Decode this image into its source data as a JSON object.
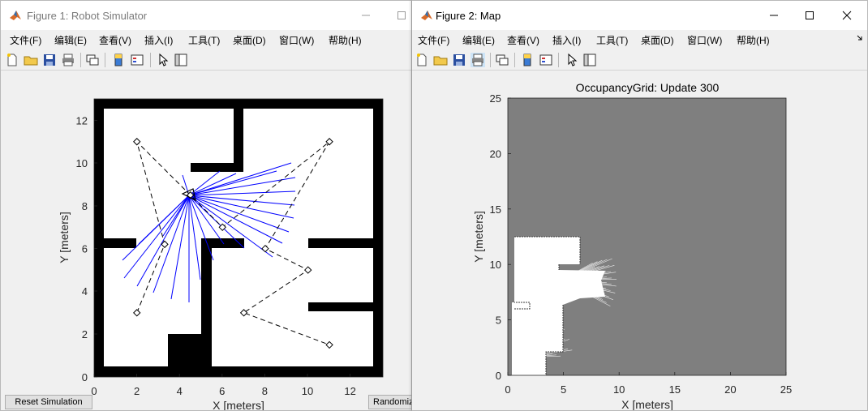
{
  "figure1": {
    "title": "Figure 1: Robot Simulator",
    "menus": [
      "文件(F)",
      "编辑(E)",
      "查看(V)",
      "插入(I)",
      "工具(T)",
      "桌面(D)",
      "窗口(W)",
      "帮助(H)"
    ],
    "xlabel": "X [meters]",
    "ylabel": "Y [meters]",
    "xticks": [
      "0",
      "2",
      "4",
      "6",
      "8",
      "10",
      "12"
    ],
    "yticks": [
      "0",
      "2",
      "4",
      "6",
      "8",
      "10",
      "12"
    ],
    "reset_button": "Reset Simulation",
    "randomize_button": "Randomiz"
  },
  "figure2": {
    "title": "Figure 2: Map",
    "menus": [
      "文件(F)",
      "编辑(E)",
      "查看(V)",
      "插入(I)",
      "工具(T)",
      "桌面(D)",
      "窗口(W)",
      "帮助(H)"
    ],
    "plot_title": "OccupancyGrid: Update 300",
    "xlabel": "X [meters]",
    "ylabel": "Y [meters]",
    "xticks": [
      "0",
      "5",
      "10",
      "15",
      "20",
      "25"
    ],
    "yticks": [
      "0",
      "5",
      "10",
      "15",
      "20",
      "25"
    ]
  },
  "colors": {
    "wall": "#000000",
    "laser": "#0000ff",
    "unknown": "#7f7f7f",
    "free": "#ffffff"
  },
  "chart_data": [
    {
      "type": "scatter",
      "xlim": [
        0,
        13.5
      ],
      "ylim": [
        0,
        13
      ],
      "robot_pose": {
        "x": 4.5,
        "y": 8.5
      },
      "waypoints": [
        {
          "x": 2,
          "y": 3
        },
        {
          "x": 3.3,
          "y": 6.2
        },
        {
          "x": 2,
          "y": 11
        },
        {
          "x": 4.5,
          "y": 8.5
        },
        {
          "x": 6,
          "y": 7
        },
        {
          "x": 11,
          "y": 11
        },
        {
          "x": 8,
          "y": 6
        },
        {
          "x": 10,
          "y": 5
        },
        {
          "x": 7,
          "y": 3
        },
        {
          "x": 11,
          "y": 1.5
        }
      ]
    },
    {
      "type": "heatmap",
      "title": "OccupancyGrid: Update 300",
      "xlim": [
        0,
        25
      ],
      "ylim": [
        0,
        25
      ]
    }
  ]
}
